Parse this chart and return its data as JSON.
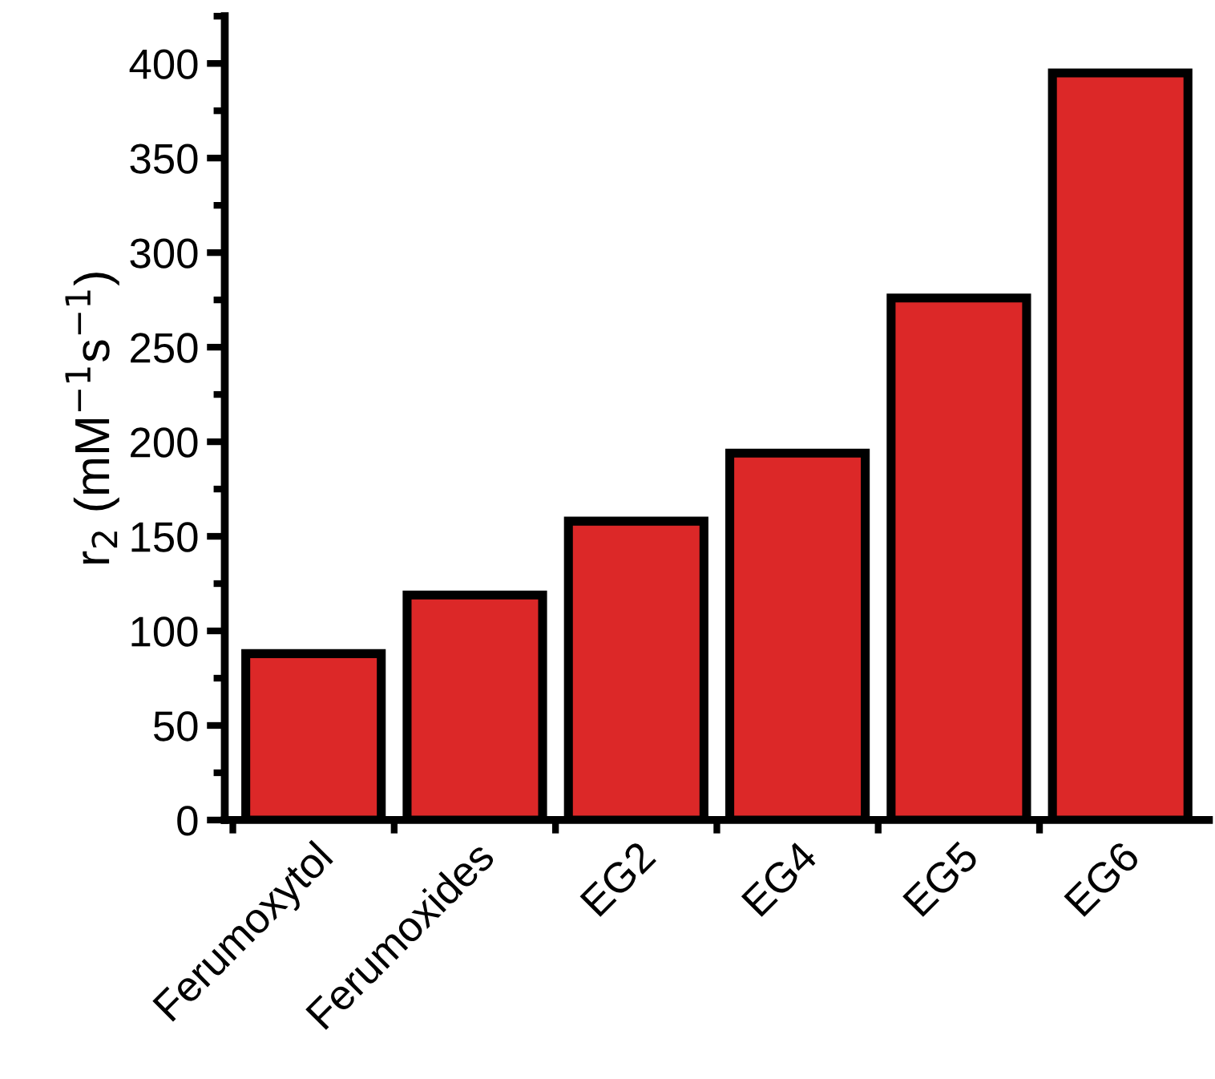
{
  "chart_data": {
    "type": "bar",
    "ylabel": "r$_{2}$ (mM$^{−1}$s$^{−1}$)",
    "categories": [
      "Ferumoxytol",
      "Ferumoxides",
      "EG2",
      "EG4",
      "EG5",
      "EG6"
    ],
    "values": [
      88,
      119,
      158,
      194,
      276,
      395
    ],
    "color": "#dc2828",
    "ylim": [
      0,
      425
    ],
    "yticks": [
      0,
      50,
      100,
      150,
      200,
      250,
      300,
      350,
      400
    ],
    "grid": false
  }
}
